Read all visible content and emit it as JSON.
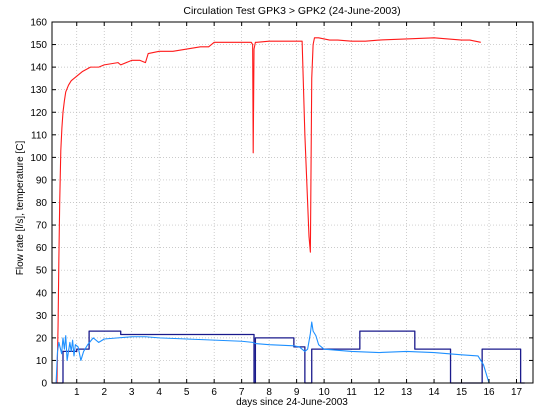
{
  "chart_data": {
    "type": "line",
    "title": "Circulation Test GPK3 > GPK2 (24-June-2003)",
    "xlabel": "days since 24-June-2003",
    "ylabel": "Flow rate [l/s], temperature [C]",
    "xlim": [
      0.1,
      17.6
    ],
    "ylim": [
      0,
      160
    ],
    "grid": true,
    "xticks": [
      1,
      2,
      3,
      4,
      5,
      6,
      7,
      8,
      9,
      10,
      11,
      12,
      13,
      14,
      15,
      16,
      17
    ],
    "yticks": [
      0,
      10,
      20,
      30,
      40,
      50,
      60,
      70,
      80,
      90,
      100,
      110,
      120,
      130,
      140,
      150,
      160
    ],
    "colors": {
      "temperature": "#ff1a1a",
      "flow_step": "#1a1a8c",
      "flow_measured": "#1e90ff"
    },
    "series": [
      {
        "color_key": "temperature",
        "x": [
          0.1,
          0.28,
          0.32,
          0.35,
          0.38,
          0.42,
          0.46,
          0.5,
          0.55,
          0.6,
          0.7,
          0.8,
          1.0,
          1.2,
          1.5,
          1.8,
          2.0,
          2.5,
          2.6,
          3.0,
          3.3,
          3.5,
          3.6,
          4.0,
          4.5,
          5.0,
          5.5,
          5.8,
          6.0,
          6.5,
          7.0,
          7.35,
          7.4,
          7.42,
          7.45,
          7.5,
          7.55,
          8.0,
          8.5,
          9.0,
          9.2,
          9.3,
          9.4,
          9.45,
          9.5,
          9.55,
          9.6,
          9.65,
          9.8,
          10.2,
          10.5,
          11.0,
          11.5,
          12.0,
          13.0,
          14.0,
          14.5,
          15.0,
          15.3,
          15.7
        ],
        "y": [
          0,
          0,
          25,
          55,
          80,
          103,
          113,
          120,
          125,
          129,
          132,
          134,
          136,
          138,
          140,
          140,
          141,
          142,
          141,
          143,
          143,
          142,
          146,
          147,
          147,
          148,
          149,
          149,
          151,
          151,
          151,
          151,
          150,
          102,
          148,
          151,
          151,
          151.5,
          151.5,
          151.5,
          151.5,
          110,
          80,
          65,
          58,
          135,
          150,
          153,
          153,
          152,
          152,
          151.5,
          151.5,
          152,
          152.5,
          153,
          152.5,
          152,
          152,
          151
        ]
      },
      {
        "color_key": "flow_step",
        "x": [
          0.1,
          0.5,
          0.5,
          1.0,
          1.0,
          1.45,
          1.45,
          2.6,
          2.6,
          7.45,
          7.45,
          7.5,
          7.5,
          8.9,
          8.9,
          9.3,
          9.3,
          9.55,
          9.55,
          11.3,
          11.3,
          13.3,
          13.3,
          14.6,
          14.6,
          15.7,
          15.7,
          15.75,
          15.75,
          17.15,
          17.15,
          17.3
        ],
        "y": [
          0,
          0,
          14,
          14,
          15,
          15,
          23,
          23,
          21.5,
          21.5,
          0,
          0,
          20,
          20,
          16,
          16,
          0,
          0,
          15,
          15,
          23,
          23,
          15,
          15,
          0,
          0,
          0,
          0,
          15,
          15,
          0,
          0
        ]
      },
      {
        "color_key": "flow_measured",
        "x": [
          0.25,
          0.3,
          0.35,
          0.45,
          0.5,
          0.55,
          0.6,
          0.65,
          0.75,
          0.8,
          0.85,
          0.9,
          0.95,
          1.05,
          1.15,
          1.25,
          1.4,
          1.6,
          1.8,
          2.0,
          2.5,
          3.0,
          3.5,
          4.0,
          5.0,
          6.0,
          7.0,
          7.4,
          7.5,
          8.0,
          8.9,
          9.1,
          9.3,
          9.4,
          9.5,
          9.55,
          9.6,
          9.7,
          9.8,
          10.0,
          10.5,
          11.0,
          12.0,
          13.0,
          14.0,
          15.0,
          15.6,
          15.8,
          16.0,
          16.5,
          17.0
        ],
        "y": [
          0,
          14,
          18,
          13,
          20,
          15,
          21,
          10,
          18,
          14,
          19,
          12,
          17,
          16,
          10,
          14,
          17,
          20,
          18,
          19.5,
          20,
          20.5,
          20.5,
          20,
          19.5,
          19,
          18.5,
          18,
          17.5,
          17,
          16.5,
          16,
          14,
          15,
          22,
          27,
          23,
          21,
          17,
          15,
          14.5,
          14,
          13.5,
          14,
          13.5,
          12.5,
          12,
          8,
          0,
          0,
          0
        ]
      }
    ]
  }
}
